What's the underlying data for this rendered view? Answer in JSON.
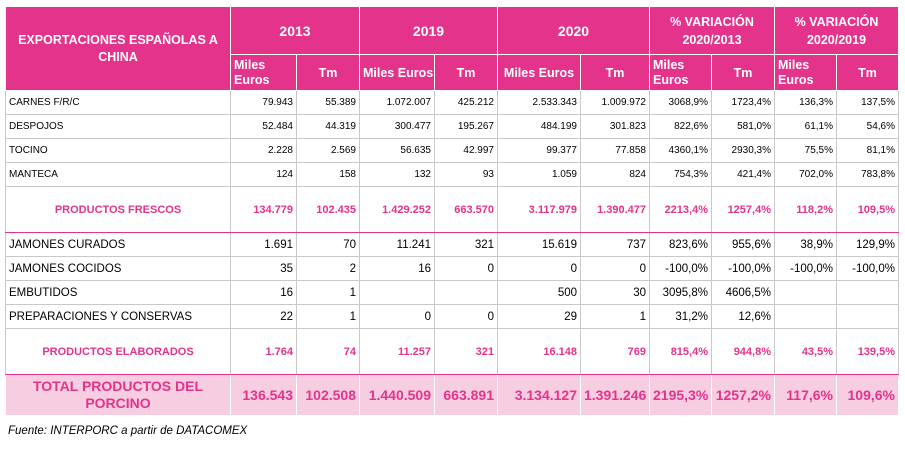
{
  "header": {
    "title": "EXPORTACIONES ESPAÑOLAS A CHINA",
    "years": [
      "2013",
      "2019",
      "2020"
    ],
    "variations": [
      "% VARIACIÓN 2020/2013",
      "% VARIACIÓN 2020/2019"
    ],
    "sub": [
      "Miles Euros",
      "Tm",
      "Miles Euros",
      "Tm",
      "Miles Euros",
      "Tm",
      "Miles Euros",
      "Tm",
      "Miles Euros",
      "Tm"
    ]
  },
  "rows": [
    {
      "label": "CARNES F/R/C",
      "values": [
        "79.943",
        "55.389",
        "1.072.007",
        "425.212",
        "2.533.343",
        "1.009.972",
        "3068,9%",
        "1723,4%",
        "136,3%",
        "137,5%"
      ]
    },
    {
      "label": "DESPOJOS",
      "values": [
        "52.484",
        "44.319",
        "300.477",
        "195.267",
        "484.199",
        "301.823",
        "822,6%",
        "581,0%",
        "61,1%",
        "54,6%"
      ]
    },
    {
      "label": "TOCINO",
      "values": [
        "2.228",
        "2.569",
        "56.635",
        "42.997",
        "99.377",
        "77.858",
        "4360,1%",
        "2930,3%",
        "75,5%",
        "81,1%"
      ]
    },
    {
      "label": "MANTECA",
      "values": [
        "124",
        "158",
        "132",
        "93",
        "1.059",
        "824",
        "754,3%",
        "421,4%",
        "702,0%",
        "783,8%"
      ]
    },
    {
      "label": "PRODUCTOS FRESCOS",
      "values": [
        "134.779",
        "102.435",
        "1.429.252",
        "663.570",
        "3.117.979",
        "1.390.477",
        "2213,4%",
        "1257,4%",
        "118,2%",
        "109,5%"
      ]
    },
    {
      "label": "JAMONES CURADOS",
      "values": [
        "1.691",
        "70",
        "11.241",
        "321",
        "15.619",
        "737",
        "823,6%",
        "955,6%",
        "38,9%",
        "129,9%"
      ]
    },
    {
      "label": "JAMONES COCIDOS",
      "values": [
        "35",
        "2",
        "16",
        "0",
        "0",
        "0",
        "-100,0%",
        "-100,0%",
        "-100,0%",
        "-100,0%"
      ]
    },
    {
      "label": "EMBUTIDOS",
      "values": [
        "16",
        "1",
        "",
        "",
        "500",
        "30",
        "3095,8%",
        "4606,5%",
        "",
        ""
      ]
    },
    {
      "label": "PREPARACIONES Y CONSERVAS",
      "values": [
        "22",
        "1",
        "0",
        "0",
        "29",
        "1",
        "31,2%",
        "12,6%",
        "",
        ""
      ]
    },
    {
      "label": "PRODUCTOS ELABORADOS",
      "values": [
        "1.764",
        "74",
        "11.257",
        "321",
        "16.148",
        "769",
        "815,4%",
        "944,8%",
        "43,5%",
        "139,5%"
      ]
    },
    {
      "label": "TOTAL PRODUCTOS DEL PORCINO",
      "values": [
        "136.543",
        "102.508",
        "1.440.509",
        "663.891",
        "3.134.127",
        "1.391.246",
        "2195,3%",
        "1257,2%",
        "117,6%",
        "109,6%"
      ]
    }
  ],
  "source": "Fuente: INTERPORC a partir de DATACOMEX"
}
